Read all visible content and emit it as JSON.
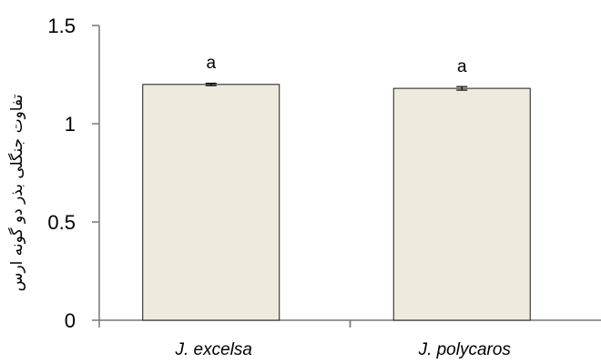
{
  "chart_data": {
    "type": "bar",
    "title": "",
    "xlabel": "",
    "ylabel": "تفاوت جنگلی بذر دو گونه ارس",
    "ylim": [
      0,
      1.5
    ],
    "yticks": [
      "0",
      "0.5",
      "1",
      "1.5"
    ],
    "categories": [
      "J. excelsa",
      "J. polycaros"
    ],
    "values": [
      1.2,
      1.18
    ],
    "error": [
      0.006,
      0.009
    ],
    "significance_labels": [
      "a",
      "a"
    ],
    "grid": false,
    "colors": {
      "bar_fill": "#eeeade",
      "bar_stroke": "#1a1a1a",
      "axis": "#777777"
    }
  }
}
